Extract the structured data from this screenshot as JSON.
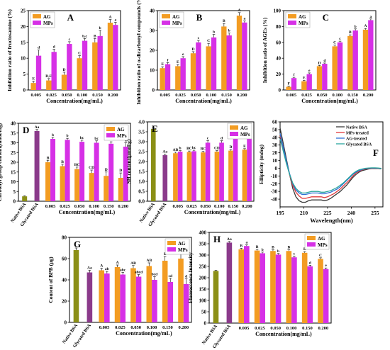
{
  "colors": {
    "AG": "#f39c22",
    "MPs": "#d630e6",
    "native": "#8b8f16",
    "glycated": "#8b3a8b",
    "error_bar": "#222222",
    "cd_lines": [
      "#3a3a3a",
      "#e0393b",
      "#2f6fd6",
      "#2aa69d"
    ]
  },
  "chart_data": [
    {
      "id": "A",
      "type": "bar",
      "panel_label": "A",
      "categories": [
        "0.005",
        "0.025",
        "0.050",
        "0.100",
        "0.150",
        "0.200"
      ],
      "xlabel": "Concentration(mg/mL)",
      "ylabel": "Inhibition ratio of fructosamine (%)",
      "ylim": [
        0,
        25
      ],
      "yticks": [
        0,
        5,
        10,
        15,
        20,
        25
      ],
      "legend": "top-left",
      "series": [
        {
          "name": "AG",
          "values": [
            2.2,
            3.0,
            4.8,
            10.0,
            15.0,
            21.2
          ],
          "errors": [
            0.6,
            0.6,
            0.8,
            0.8,
            1.2,
            1.0
          ],
          "letters": [
            "E",
            "D,E",
            "D",
            "C",
            "B",
            "A"
          ]
        },
        {
          "name": "MPs",
          "values": [
            10.8,
            12.0,
            14.5,
            15.5,
            17.0,
            20.5
          ],
          "errors": [
            1.8,
            0.8,
            0.7,
            0.7,
            1.8,
            0.8
          ],
          "letters": [
            "d",
            "d",
            "c",
            "b,c",
            "b",
            "a"
          ]
        }
      ]
    },
    {
      "id": "B",
      "type": "bar",
      "panel_label": "B",
      "categories": [
        "0.005",
        "0.025",
        "0.050",
        "0.100",
        "0.150",
        "0.200"
      ],
      "xlabel": "Concentration(mg/mL)",
      "ylabel": "Inhibition ratio of α-dicarbonyl compounds (%)",
      "ylim": [
        0,
        40
      ],
      "yticks": [
        0,
        10,
        20,
        30,
        40
      ],
      "legend": "top-left",
      "series": [
        {
          "name": "AG",
          "values": [
            11.0,
            12.0,
            18.5,
            22.0,
            32.0,
            37.5
          ],
          "errors": [
            0.7,
            0.8,
            0.8,
            1.5,
            1.5,
            1.5
          ],
          "letters": [
            "E",
            "E",
            "D",
            "C",
            "B",
            "A"
          ]
        },
        {
          "name": "MPs",
          "values": [
            13.0,
            16.0,
            24.0,
            26.5,
            27.5,
            34.0
          ],
          "errors": [
            0.8,
            0.8,
            1.0,
            1.5,
            1.2,
            0.8
          ],
          "letters": [
            "f",
            "e",
            "c",
            "b",
            "b",
            "a"
          ]
        }
      ]
    },
    {
      "id": "C",
      "type": "bar",
      "panel_label": "C",
      "categories": [
        "0.005",
        "0.025",
        "0.050",
        "0.100",
        "0.150",
        "0.200"
      ],
      "xlabel": "Concentration(mg/mL)",
      "ylabel": "Inhibition ratio of AGEs (%)",
      "ylim": [
        0,
        100
      ],
      "yticks": [
        0,
        20,
        40,
        60,
        80,
        100
      ],
      "legend": "top-left",
      "series": [
        {
          "name": "AG",
          "values": [
            4.0,
            11.0,
            30.0,
            55.0,
            68.0,
            76.0
          ],
          "errors": [
            1.0,
            1.0,
            1.0,
            1.5,
            1.5,
            1.5
          ],
          "letters": [
            "F",
            "E",
            "D",
            "C",
            "B",
            "A"
          ]
        },
        {
          "name": "MPs",
          "values": [
            15.0,
            20.0,
            33.0,
            60.0,
            75.0,
            88.0
          ],
          "errors": [
            1.0,
            1.5,
            1.0,
            1.5,
            2.0,
            1.5
          ],
          "letters": [
            "f",
            "e",
            "d",
            "c",
            "b",
            "a"
          ]
        }
      ]
    },
    {
      "id": "D",
      "type": "bar",
      "panel_label": "D",
      "controls": [
        "Native BSA",
        "Glycated BSA"
      ],
      "control_values": [
        2.5,
        36.0
      ],
      "control_errors": [
        0.3,
        0.8
      ],
      "control_letters": [
        "",
        "Aa"
      ],
      "categories": [
        "0.005",
        "0.025",
        "0.050",
        "0.100",
        "0.150",
        "0.200"
      ],
      "xlabel": "Concentration(mg/mL)",
      "ylabel": "Carbonyl group content(nmol/mg)",
      "ylim": [
        0,
        40
      ],
      "yticks": [
        0,
        5,
        10,
        15,
        20,
        25,
        30,
        35,
        40
      ],
      "legend": "top-right",
      "series": [
        {
          "name": "AG",
          "values": [
            20.0,
            18.0,
            16.5,
            14.5,
            13.0,
            12.0
          ],
          "errors": [
            1.0,
            1.0,
            1.0,
            1.5,
            2.0,
            2.5
          ],
          "letters": [
            "B",
            "B",
            "BC",
            "CD",
            "D",
            "D"
          ]
        },
        {
          "name": "MPs",
          "values": [
            32.0,
            31.5,
            30.5,
            30.0,
            29.5,
            28.0
          ],
          "errors": [
            0.8,
            0.8,
            0.8,
            1.0,
            1.0,
            2.0
          ],
          "letters": [
            "b",
            "b",
            "bc",
            "bc",
            "cd",
            "d"
          ]
        }
      ]
    },
    {
      "id": "E",
      "type": "bar",
      "panel_label": "E",
      "controls": [
        "Native BSA",
        "Glycated BSA"
      ],
      "control_values": [
        3.65,
        2.32
      ],
      "control_errors": [
        0.05,
        0.05
      ],
      "control_letters": [
        "",
        "Aa"
      ],
      "categories": [
        "0.005",
        "0.025",
        "0.050",
        "0.100",
        "0.150",
        "0.200"
      ],
      "xlabel": "Concentration(mg/mL)",
      "ylabel": "SH content(μmol/g)",
      "ylim": [
        0,
        4.0
      ],
      "yticks": [
        0,
        0.5,
        1.0,
        1.5,
        2.0,
        2.5,
        3.0,
        3.5,
        4.0
      ],
      "legend": "top-right",
      "series": [
        {
          "name": "AG",
          "values": [
            2.42,
            2.48,
            2.46,
            2.5,
            2.55,
            2.6
          ],
          "errors": [
            0.05,
            0.05,
            0.05,
            0.05,
            0.05,
            0.05
          ],
          "letters": [
            "AB",
            "BC",
            "BC",
            "CD",
            "D",
            "E"
          ]
        },
        {
          "name": "MPs",
          "values": [
            2.5,
            2.52,
            2.95,
            2.95,
            3.18,
            3.45
          ],
          "errors": [
            0.05,
            0.05,
            0.1,
            0.1,
            0.1,
            0.1
          ],
          "letters": [
            "b",
            "bc",
            "c",
            "d",
            "e",
            "f"
          ]
        }
      ]
    },
    {
      "id": "F",
      "type": "line",
      "panel_label": "F",
      "xlabel": "Wavelength(nm)",
      "ylabel": "Ellipticity (mdeg)",
      "xlim": [
        195,
        260
      ],
      "ylim": [
        -50,
        60
      ],
      "xticks": [
        195,
        210,
        225,
        240,
        255
      ],
      "yticks": [
        -40,
        -30,
        -20,
        -10,
        0,
        10,
        20,
        30,
        40,
        50,
        60
      ],
      "legend": "top-right",
      "x": [
        195,
        197,
        199,
        201,
        203,
        205,
        207,
        209,
        211,
        213,
        215,
        217,
        219,
        221,
        223,
        225,
        227,
        229,
        231,
        233,
        235,
        237,
        239,
        241,
        243,
        245,
        247,
        249,
        251,
        253,
        255,
        257,
        259
      ],
      "series": [
        {
          "name": "Native BSA",
          "values": [
            52,
            32,
            12,
            -8,
            -26,
            -37,
            -42,
            -44,
            -44,
            -42,
            -41,
            -41,
            -41,
            -41,
            -42,
            -41,
            -39,
            -36,
            -33,
            -30,
            -26,
            -22,
            -17,
            -12,
            -8,
            -5,
            -3,
            -2,
            -1,
            -0.5,
            -0.3,
            -0.5,
            -0.8
          ]
        },
        {
          "name": "MPs-treated",
          "values": [
            42,
            25,
            8,
            -8,
            -22,
            -31,
            -36,
            -39,
            -39,
            -38,
            -37,
            -37,
            -37,
            -37,
            -38,
            -37,
            -35,
            -33,
            -30,
            -27,
            -23,
            -19,
            -15,
            -10,
            -6,
            -4,
            -2,
            -1,
            -0.5,
            -0.2,
            0,
            -0.3,
            -0.6
          ]
        },
        {
          "name": "AG-treated",
          "values": [
            45,
            27,
            9,
            -7,
            -20,
            -28,
            -32,
            -34,
            -34,
            -33,
            -32,
            -32,
            -32,
            -33,
            -33,
            -32,
            -31,
            -29,
            -27,
            -24,
            -20,
            -16,
            -12,
            -8,
            -5,
            -3,
            -1.5,
            -0.5,
            0,
            0.2,
            0.3,
            0,
            -0.4
          ]
        },
        {
          "name": "Glycated BSA",
          "values": [
            38,
            22,
            6,
            -8,
            -19,
            -26,
            -30,
            -32,
            -32,
            -31,
            -30,
            -30,
            -30,
            -31,
            -31,
            -30,
            -29,
            -27,
            -25,
            -22,
            -19,
            -15,
            -11,
            -7,
            -4,
            -2,
            -1,
            0,
            0.3,
            0.5,
            0.5,
            0.2,
            -0.2
          ]
        }
      ]
    },
    {
      "id": "G",
      "type": "bar",
      "panel_label": "G",
      "controls": [
        "Native BSA",
        "Glycated BSA"
      ],
      "control_values": [
        68.0,
        47.0
      ],
      "control_errors": [
        2.0,
        2.0
      ],
      "control_letters": [
        "",
        "Aa"
      ],
      "categories": [
        "0.005",
        "0.025",
        "0.050",
        "0.100",
        "0.150",
        "0.200"
      ],
      "xlabel": "Concentration(mg/mL)",
      "ylabel": "Content of BPB (μg)",
      "ylim": [
        0,
        80
      ],
      "yticks": [
        0,
        20,
        40,
        60,
        80
      ],
      "legend": "top-right",
      "series": [
        {
          "name": "AG",
          "values": [
            49.0,
            52.0,
            51.0,
            53.0,
            58.0,
            60.0
          ],
          "errors": [
            2.0,
            2.0,
            2.5,
            3.0,
            4.0,
            6.0
          ],
          "letters": [
            "A",
            "A",
            "AB",
            "AB",
            "B",
            "B"
          ]
        },
        {
          "name": "MPs",
          "values": [
            46.0,
            45.0,
            43.0,
            40.0,
            38.0,
            36.0
          ],
          "errors": [
            2.0,
            2.0,
            2.0,
            3.0,
            3.5,
            5.0
          ],
          "letters": [
            "ab",
            "abc",
            "abcd",
            "bcd",
            "cd",
            "d"
          ]
        }
      ]
    },
    {
      "id": "H",
      "type": "bar",
      "panel_label": "H",
      "controls": [
        "Native BSA",
        "Glycated BSA"
      ],
      "control_values": [
        230,
        355
      ],
      "control_errors": [
        3,
        5
      ],
      "control_letters": [
        "",
        "Aa"
      ],
      "categories": [
        "0.005",
        "0.025",
        "0.050",
        "0.100",
        "0.150",
        "0.200"
      ],
      "xlabel": "Concentration(mg/mL)",
      "ylabel": "Fluorescence Intensity",
      "ylim": [
        0,
        400
      ],
      "yticks": [
        0,
        50,
        100,
        150,
        200,
        250,
        300,
        350,
        400
      ],
      "legend": "top-right",
      "series": [
        {
          "name": "AG",
          "values": [
            325,
            320,
            318,
            318,
            310,
            283
          ],
          "errors": [
            5,
            5,
            5,
            5,
            5,
            5
          ],
          "letters": [
            "B",
            "B",
            "B",
            "B",
            "B",
            "C"
          ]
        },
        {
          "name": "MPs",
          "values": [
            340,
            308,
            302,
            290,
            250,
            238
          ],
          "errors": [
            5,
            5,
            5,
            5,
            5,
            5
          ],
          "letters": [
            "a",
            "b",
            "b",
            "c",
            "d",
            "e"
          ]
        }
      ]
    }
  ]
}
